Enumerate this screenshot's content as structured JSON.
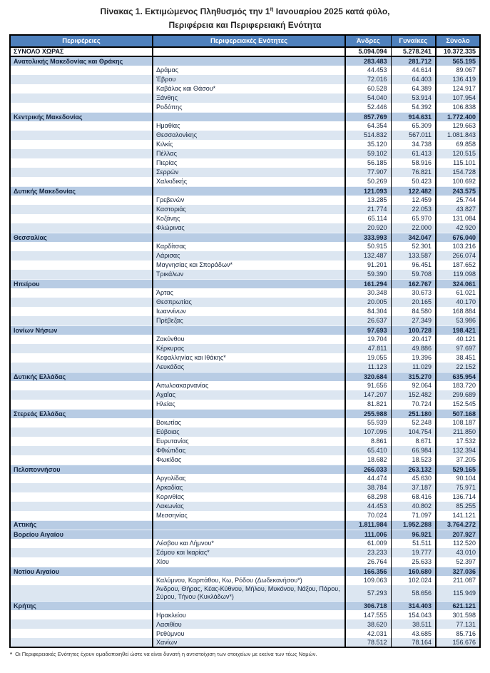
{
  "title": {
    "line1_a": "Πίνακας 1. Εκτιμώμενος Πληθυσμός την 1",
    "line1_sup": "η",
    "line1_b": " Ιανουαρίου 2025 κατά φύλο,",
    "line2": "Περιφέρεια και Περιφερειακή Ενότητα"
  },
  "columns": [
    "Περιφέρειες",
    "Περιφερειακές Ενότητες",
    "Άνδρες",
    "Γυναίκες",
    "Σύνολο"
  ],
  "rows": [
    {
      "type": "total",
      "name": "ΣΥΝΟΛΟ ΧΩΡΑΣ",
      "males": "5.094.094",
      "females": "5.278.241",
      "total": "10.372.335"
    },
    {
      "type": "region",
      "name": "Ανατολικής Μακεδονίας και Θράκης",
      "males": "283.483",
      "females": "281.712",
      "total": "565.195"
    },
    {
      "type": "unit",
      "name": "Δράμας",
      "males": "44.453",
      "females": "44.614",
      "total": "89.067"
    },
    {
      "type": "unit",
      "name": "Έβρου",
      "males": "72.016",
      "females": "64.403",
      "total": "136.419"
    },
    {
      "type": "unit",
      "name": "Καβάλας και Θάσου*",
      "males": "60.528",
      "females": "64.389",
      "total": "124.917"
    },
    {
      "type": "unit",
      "name": "Ξάνθης",
      "males": "54.040",
      "females": "53.914",
      "total": "107.954"
    },
    {
      "type": "unit",
      "name": "Ροδόπης",
      "males": "52.446",
      "females": "54.392",
      "total": "106.838"
    },
    {
      "type": "region",
      "name": "Κεντρικής Μακεδονίας",
      "males": "857.769",
      "females": "914.631",
      "total": "1.772.400"
    },
    {
      "type": "unit",
      "name": "Ημαθίας",
      "males": "64.354",
      "females": "65.309",
      "total": "129.663"
    },
    {
      "type": "unit",
      "name": "Θεσσαλονίκης",
      "males": "514.832",
      "females": "567.011",
      "total": "1.081.843"
    },
    {
      "type": "unit",
      "name": "Κιλκίς",
      "males": "35.120",
      "females": "34.738",
      "total": "69.858"
    },
    {
      "type": "unit",
      "name": "Πέλλας",
      "males": "59.102",
      "females": "61.413",
      "total": "120.515"
    },
    {
      "type": "unit",
      "name": "Πιερίας",
      "males": "56.185",
      "females": "58.916",
      "total": "115.101"
    },
    {
      "type": "unit",
      "name": "Σερρών",
      "males": "77.907",
      "females": "76.821",
      "total": "154.728"
    },
    {
      "type": "unit",
      "name": "Χαλκιδικής",
      "males": "50.269",
      "females": "50.423",
      "total": "100.692"
    },
    {
      "type": "region",
      "name": "Δυτικής Μακεδονίας",
      "males": "121.093",
      "females": "122.482",
      "total": "243.575"
    },
    {
      "type": "unit",
      "name": "Γρεβενών",
      "males": "13.285",
      "females": "12.459",
      "total": "25.744"
    },
    {
      "type": "unit",
      "name": "Καστοριάς",
      "males": "21.774",
      "females": "22.053",
      "total": "43.827"
    },
    {
      "type": "unit",
      "name": "Κοζάνης",
      "males": "65.114",
      "females": "65.970",
      "total": "131.084"
    },
    {
      "type": "unit",
      "name": "Φλώρινας",
      "males": "20.920",
      "females": "22.000",
      "total": "42.920"
    },
    {
      "type": "region",
      "name": "Θεσσαλίας",
      "males": "333.993",
      "females": "342.047",
      "total": "676.040"
    },
    {
      "type": "unit",
      "name": "Καρδίτσας",
      "males": "50.915",
      "females": "52.301",
      "total": "103.216"
    },
    {
      "type": "unit",
      "name": "Λάρισας",
      "males": "132.487",
      "females": "133.587",
      "total": "266.074"
    },
    {
      "type": "unit",
      "name": "Μαγνησίας και Σποράδων*",
      "males": "91.201",
      "females": "96.451",
      "total": "187.652"
    },
    {
      "type": "unit",
      "name": "Τρικάλων",
      "males": "59.390",
      "females": "59.708",
      "total": "119.098"
    },
    {
      "type": "region",
      "name": "Ηπείρου",
      "males": "161.294",
      "females": "162.767",
      "total": "324.061"
    },
    {
      "type": "unit",
      "name": "Άρτας",
      "males": "30.348",
      "females": "30.673",
      "total": "61.021"
    },
    {
      "type": "unit",
      "name": "Θεσπρωτίας",
      "males": "20.005",
      "females": "20.165",
      "total": "40.170"
    },
    {
      "type": "unit",
      "name": "Ιωαννίνων",
      "males": "84.304",
      "females": "84.580",
      "total": "168.884"
    },
    {
      "type": "unit",
      "name": "Πρέβεζας",
      "males": "26.637",
      "females": "27.349",
      "total": "53.986"
    },
    {
      "type": "region",
      "name": "Ιονίων Νήσων",
      "males": "97.693",
      "females": "100.728",
      "total": "198.421"
    },
    {
      "type": "unit",
      "name": "Ζακύνθου",
      "males": "19.704",
      "females": "20.417",
      "total": "40.121"
    },
    {
      "type": "unit",
      "name": "Κέρκυρας",
      "males": "47.811",
      "females": "49.886",
      "total": "97.697"
    },
    {
      "type": "unit",
      "name": "Κεφαλληνίας και Ιθάκης*",
      "males": "19.055",
      "females": "19.396",
      "total": "38.451"
    },
    {
      "type": "unit",
      "name": "Λευκάδας",
      "males": "11.123",
      "females": "11.029",
      "total": "22.152"
    },
    {
      "type": "region",
      "name": "Δυτικής Ελλάδας",
      "males": "320.684",
      "females": "315.270",
      "total": "635.954"
    },
    {
      "type": "unit",
      "name": "Αιτωλοακαρνανίας",
      "males": "91.656",
      "females": "92.064",
      "total": "183.720"
    },
    {
      "type": "unit",
      "name": "Αχαΐας",
      "males": "147.207",
      "females": "152.482",
      "total": "299.689"
    },
    {
      "type": "unit",
      "name": "Ηλείας",
      "males": "81.821",
      "females": "70.724",
      "total": "152.545"
    },
    {
      "type": "region",
      "name": "Στερεάς Ελλάδας",
      "males": "255.988",
      "females": "251.180",
      "total": "507.168"
    },
    {
      "type": "unit",
      "name": "Βοιωτίας",
      "males": "55.939",
      "females": "52.248",
      "total": "108.187"
    },
    {
      "type": "unit",
      "name": "Εύβοιας",
      "males": "107.096",
      "females": "104.754",
      "total": "211.850"
    },
    {
      "type": "unit",
      "name": "Ευρυτανίας",
      "males": "8.861",
      "females": "8.671",
      "total": "17.532"
    },
    {
      "type": "unit",
      "name": "Φθιώτιδας",
      "males": "65.410",
      "females": "66.984",
      "total": "132.394"
    },
    {
      "type": "unit",
      "name": "Φωκίδας",
      "males": "18.682",
      "females": "18.523",
      "total": "37.205"
    },
    {
      "type": "region",
      "name": "Πελοποννήσου",
      "males": "266.033",
      "females": "263.132",
      "total": "529.165"
    },
    {
      "type": "unit",
      "name": "Αργολίδας",
      "males": "44.474",
      "females": "45.630",
      "total": "90.104"
    },
    {
      "type": "unit",
      "name": "Αρκαδίας",
      "males": "38.784",
      "females": "37.187",
      "total": "75.971"
    },
    {
      "type": "unit",
      "name": "Κορινθίας",
      "males": "68.298",
      "females": "68.416",
      "total": "136.714"
    },
    {
      "type": "unit",
      "name": "Λακωνίας",
      "males": "44.453",
      "females": "40.802",
      "total": "85.255"
    },
    {
      "type": "unit",
      "name": "Μεσσηνίας",
      "males": "70.024",
      "females": "71.097",
      "total": "141.121"
    },
    {
      "type": "region",
      "name": "Αττικής",
      "males": "1.811.984",
      "females": "1.952.288",
      "total": "3.764.272"
    },
    {
      "type": "region",
      "name": "Βορείου Αιγαίου",
      "males": "111.006",
      "females": "96.921",
      "total": "207.927"
    },
    {
      "type": "unit",
      "name": "Λέσβου και Λήμνου*",
      "males": "61.009",
      "females": "51.511",
      "total": "112.520"
    },
    {
      "type": "unit",
      "name": "Σάμου και Ικαρίας*",
      "males": "23.233",
      "females": "19.777",
      "total": "43.010"
    },
    {
      "type": "unit",
      "name": "Χίου",
      "males": "26.764",
      "females": "25.633",
      "total": "52.397"
    },
    {
      "type": "region",
      "name": "Νοτίου Αιγαίου",
      "males": "166.356",
      "females": "160.680",
      "total": "327.036"
    },
    {
      "type": "unit",
      "name": "Καλύμνου, Καρπάθου, Κω, Ρόδου (Δωδεκανήσου*)",
      "males": "109.063",
      "females": "102.024",
      "total": "211.087"
    },
    {
      "type": "unit",
      "name": "Άνδρου, Θήρας, Κέας-Κύθνου, Μήλου, Μυκόνου, Νάξου, Πάρου, Σύρου, Τήνου (Κυκλάδων*)",
      "males": "57.293",
      "females": "58.656",
      "total": "115.949"
    },
    {
      "type": "region",
      "name": "Κρήτης",
      "males": "306.718",
      "females": "314.403",
      "total": "621.121"
    },
    {
      "type": "unit",
      "name": "Ηρακλείου",
      "males": "147.555",
      "females": "154.043",
      "total": "301.598"
    },
    {
      "type": "unit",
      "name": "Λασιθίου",
      "males": "38.620",
      "females": "38.511",
      "total": "77.131"
    },
    {
      "type": "unit",
      "name": "Ρεθύμνου",
      "males": "42.031",
      "females": "43.685",
      "total": "85.716"
    },
    {
      "type": "unit",
      "name": "Χανίων",
      "males": "78.512",
      "females": "78.164",
      "total": "156.676"
    }
  ],
  "footnote": {
    "star": "*",
    "text": " Οι Περιφερειακές Ενότητες έχουν ομαδοποιηθεί ώστε να είναι δυνατή η αντιστοίχιση των στοιχείων με εκείνα των τέως Νομών."
  },
  "colors": {
    "header_bg": "#4f81bd",
    "header_text": "#ffffff",
    "region_row_bg": "#b8cce4",
    "stripe_row_bg": "#dce6f1",
    "table_border": "#000000"
  }
}
